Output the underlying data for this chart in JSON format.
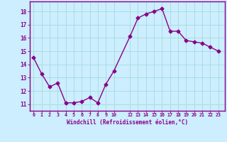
{
  "x": [
    0,
    1,
    2,
    3,
    4,
    5,
    6,
    7,
    8,
    9,
    10,
    12,
    13,
    14,
    15,
    16,
    17,
    18,
    19,
    20,
    21,
    22,
    23
  ],
  "y": [
    14.5,
    13.3,
    12.3,
    12.6,
    11.1,
    11.1,
    11.2,
    11.5,
    11.1,
    12.5,
    13.5,
    16.1,
    17.5,
    17.8,
    18.0,
    18.2,
    16.5,
    16.5,
    15.8,
    15.7,
    15.6,
    15.3,
    15.0
  ],
  "line_color": "#880088",
  "marker": "D",
  "marker_size": 2.5,
  "bg_color": "#cceeff",
  "grid_color": "#aadddd",
  "xlabel": "Windchill (Refroidissement éolien,°C)",
  "xlabel_color": "#880088",
  "tick_color": "#880088",
  "spine_color": "#880088",
  "ylim": [
    10.5,
    18.75
  ],
  "yticks": [
    11,
    12,
    13,
    14,
    15,
    16,
    17,
    18
  ],
  "xticks": [
    0,
    1,
    2,
    3,
    4,
    5,
    6,
    7,
    8,
    9,
    10,
    12,
    13,
    14,
    15,
    16,
    17,
    18,
    19,
    20,
    21,
    22,
    23
  ],
  "xlim": [
    -0.5,
    23.8
  ]
}
